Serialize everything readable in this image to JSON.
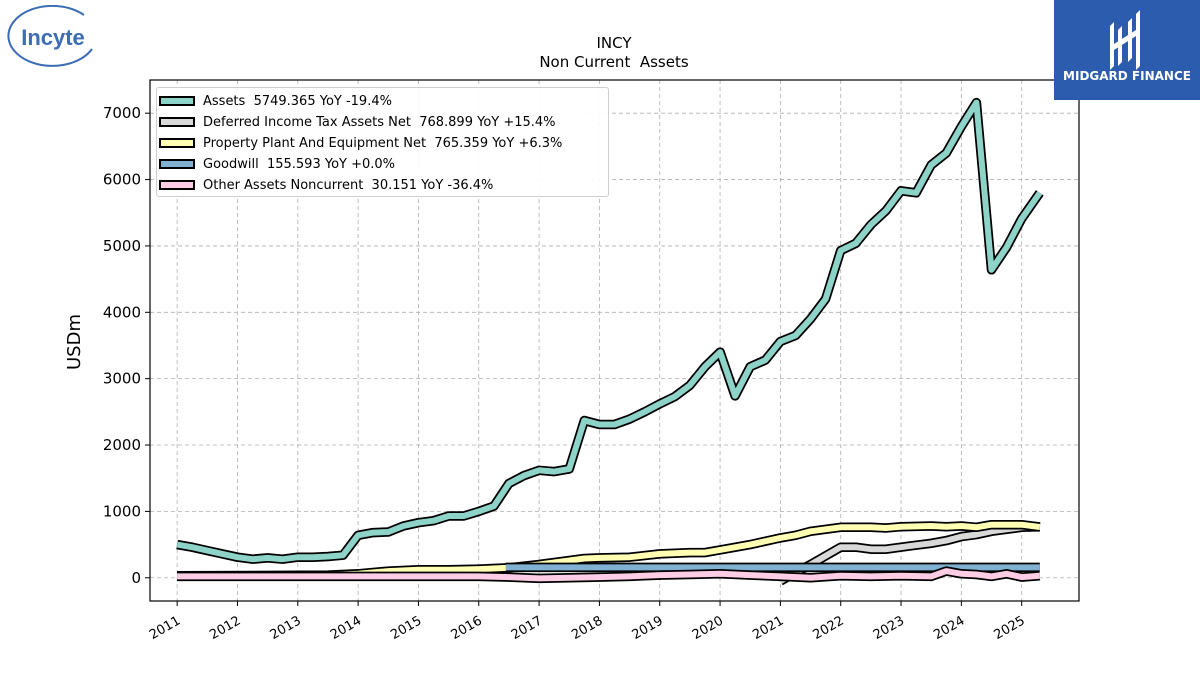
{
  "brand": {
    "left_logo_text": "Incyte",
    "right_logo_text": "MIDGARD FINANCE",
    "right_logo_bg": "#2b5cad",
    "left_logo_color": "#3b6cb4"
  },
  "chart_data": {
    "type": "line",
    "title": "INCY",
    "subtitle": "Non Current  Assets",
    "ylabel": "USDm",
    "xlabel": "",
    "ylim": [
      -350,
      7500
    ],
    "xlim": [
      2010.55,
      2025.95
    ],
    "y_ticks": [
      0,
      1000,
      2000,
      3000,
      4000,
      5000,
      6000,
      7000
    ],
    "x_ticks": [
      "2011",
      "2012",
      "2013",
      "2014",
      "2015",
      "2016",
      "2017",
      "2018",
      "2019",
      "2020",
      "2021",
      "2022",
      "2023",
      "2024",
      "2025"
    ],
    "grid": true,
    "legend_position": "top-left",
    "series": [
      {
        "name": "Assets",
        "legend_label": "Assets  5749.365 YoY -19.4%",
        "color": "#8dd3c7",
        "x": [
          2011.0,
          2011.25,
          2011.5,
          2011.75,
          2012.0,
          2012.25,
          2012.5,
          2012.75,
          2013.0,
          2013.25,
          2013.5,
          2013.75,
          2014.0,
          2014.25,
          2014.5,
          2014.75,
          2015.0,
          2015.25,
          2015.5,
          2015.75,
          2016.0,
          2016.25,
          2016.5,
          2016.75,
          2017.0,
          2017.25,
          2017.5,
          2017.75,
          2018.0,
          2018.25,
          2018.5,
          2018.75,
          2019.0,
          2019.25,
          2019.5,
          2019.75,
          2020.0,
          2020.25,
          2020.5,
          2020.75,
          2021.0,
          2021.25,
          2021.5,
          2021.75,
          2022.0,
          2022.25,
          2022.5,
          2022.75,
          2023.0,
          2023.25,
          2023.5,
          2023.75,
          2024.0,
          2024.25,
          2024.5,
          2024.75,
          2025.0,
          2025.3
        ],
        "values": [
          500,
          460,
          410,
          360,
          310,
          280,
          300,
          280,
          310,
          310,
          320,
          340,
          640,
          680,
          690,
          780,
          830,
          860,
          930,
          930,
          1000,
          1080,
          1420,
          1540,
          1620,
          1600,
          1640,
          2370,
          2310,
          2310,
          2390,
          2500,
          2620,
          2730,
          2900,
          3180,
          3400,
          2740,
          3180,
          3280,
          3560,
          3650,
          3900,
          4200,
          4930,
          5040,
          5320,
          5530,
          5830,
          5800,
          6220,
          6400,
          6800,
          7160,
          4640,
          4980,
          5410,
          5800
        ]
      },
      {
        "name": "Deferred Income Tax Assets Net",
        "legend_label": "Deferred Income Tax Assets Net  768.899 YoY +15.4%",
        "color": "#d9d9d9",
        "x": [
          2021.0,
          2021.25,
          2021.5,
          2021.75,
          2022.0,
          2022.25,
          2022.5,
          2022.75,
          2023.0,
          2023.25,
          2023.5,
          2023.75,
          2024.0,
          2024.25,
          2024.5,
          2024.75,
          2025.0,
          2025.3
        ],
        "values": [
          -50,
          80,
          200,
          330,
          460,
          460,
          430,
          430,
          460,
          490,
          520,
          560,
          620,
          650,
          700,
          730,
          760,
          769
        ]
      },
      {
        "name": "Property Plant And Equipment Net",
        "legend_label": "Property Plant And Equipment Net  765.359 YoY +6.3%",
        "color": "#ffffb3",
        "x": [
          2011.0,
          2013.5,
          2014.0,
          2014.5,
          2015.0,
          2015.5,
          2016.0,
          2016.5,
          2017.0,
          2017.5,
          2017.75,
          2018.0,
          2018.5,
          2019.0,
          2019.5,
          2019.75,
          2020.0,
          2020.5,
          2021.0,
          2021.25,
          2021.5,
          2021.75,
          2022.0,
          2022.5,
          2022.75,
          2023.0,
          2023.5,
          2023.75,
          2024.0,
          2024.25,
          2024.5,
          2025.0,
          2025.3
        ],
        "values": [
          30,
          40,
          60,
          100,
          120,
          120,
          130,
          150,
          200,
          260,
          290,
          300,
          310,
          360,
          380,
          380,
          420,
          500,
          600,
          640,
          700,
          730,
          760,
          760,
          750,
          770,
          780,
          770,
          780,
          760,
          800,
          800,
          765
        ]
      },
      {
        "name": "Goodwill",
        "legend_label": "Goodwill  155.593 YoY +0.0%",
        "color": "#80b1d3",
        "x": [
          2016.45,
          2025.3
        ],
        "values": [
          156,
          156
        ]
      },
      {
        "name": "Other Assets Noncurrent",
        "legend_label": "Other Assets Noncurrent  30.151 YoY -36.4%",
        "color": "#fccde5",
        "x": [
          2011.0,
          2016.0,
          2016.5,
          2017.0,
          2017.5,
          2018.0,
          2018.5,
          2019.0,
          2019.5,
          2020.0,
          2020.5,
          2021.0,
          2021.5,
          2022.0,
          2022.5,
          2023.0,
          2023.5,
          2023.75,
          2024.0,
          2024.25,
          2024.5,
          2024.75,
          2025.0,
          2025.3
        ],
        "values": [
          20,
          20,
          10,
          -10,
          0,
          10,
          20,
          40,
          50,
          60,
          40,
          20,
          0,
          30,
          20,
          30,
          20,
          100,
          60,
          50,
          20,
          60,
          10,
          30
        ]
      }
    ]
  }
}
